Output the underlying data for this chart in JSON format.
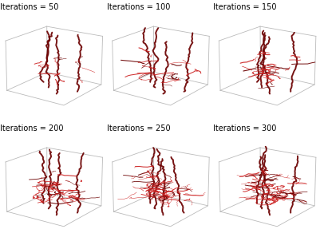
{
  "iterations": [
    50,
    100,
    150,
    200,
    250,
    300
  ],
  "labels": [
    "Iterations = 50",
    "Iterations = 100",
    "Iterations = 150",
    "Iterations = 200",
    "Iterations = 250",
    "Iterations = 300"
  ],
  "bg_color": "#ffffff",
  "vessel_color_main": "#6B0000",
  "vessel_color_branch": "#cc2222",
  "floor_color": "#cccccc",
  "label_fontsize": 7.0,
  "grid_rows": 2,
  "grid_cols": 3
}
